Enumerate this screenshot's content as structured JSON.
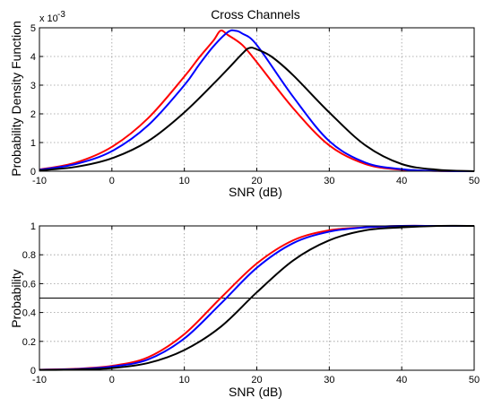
{
  "chart_data": [
    {
      "type": "line",
      "title": "Cross Channels",
      "xlabel": "SNR (dB)",
      "ylabel": "Probability Density Function",
      "y_multiplier_label": "x 10",
      "y_multiplier_exponent": "-3",
      "xlim": [
        -10,
        50
      ],
      "ylim": [
        0,
        5
      ],
      "x_ticks": [
        "-10",
        "0",
        "10",
        "20",
        "30",
        "40",
        "50"
      ],
      "y_ticks": [
        "0",
        "1",
        "2",
        "3",
        "4",
        "5"
      ],
      "grid": true,
      "series": [
        {
          "color": "#ff0000",
          "x": [
            -10,
            -5,
            0,
            5,
            10,
            12,
            14,
            15,
            16,
            18,
            20,
            25,
            30,
            35,
            40,
            45,
            50
          ],
          "y": [
            0.06,
            0.3,
            0.85,
            1.85,
            3.3,
            3.95,
            4.55,
            4.9,
            4.75,
            4.4,
            3.8,
            2.2,
            0.9,
            0.25,
            0.05,
            0.01,
            0
          ]
        },
        {
          "color": "#0000ff",
          "x": [
            -10,
            -5,
            0,
            5,
            10,
            12,
            14,
            16,
            17,
            18,
            20,
            25,
            30,
            35,
            40,
            45,
            50
          ],
          "y": [
            0.05,
            0.25,
            0.7,
            1.6,
            3.0,
            3.7,
            4.35,
            4.85,
            4.9,
            4.8,
            4.4,
            2.6,
            1.05,
            0.3,
            0.07,
            0.01,
            0
          ]
        },
        {
          "color": "#000000",
          "x": [
            -10,
            -5,
            0,
            5,
            10,
            15,
            18,
            19,
            20,
            22,
            25,
            30,
            35,
            40,
            45,
            50
          ],
          "y": [
            0.03,
            0.15,
            0.45,
            1.05,
            2.05,
            3.3,
            4.1,
            4.3,
            4.25,
            4.0,
            3.35,
            2.05,
            0.9,
            0.25,
            0.05,
            0
          ]
        }
      ]
    },
    {
      "type": "line",
      "title": "",
      "xlabel": "SNR (dB)",
      "ylabel": "Probability",
      "xlim": [
        -10,
        50
      ],
      "ylim": [
        0,
        1
      ],
      "x_ticks": [
        "-10",
        "0",
        "10",
        "20",
        "30",
        "40",
        "50"
      ],
      "y_ticks": [
        "0",
        "0.2",
        "0.4",
        "0.6",
        "0.8",
        "1"
      ],
      "grid": true,
      "reference_line_y": 0.5,
      "series": [
        {
          "color": "#ff0000",
          "x": [
            -10,
            -5,
            0,
            5,
            10,
            15,
            20,
            25,
            30,
            35,
            40,
            45,
            50
          ],
          "y": [
            0.004,
            0.01,
            0.03,
            0.09,
            0.25,
            0.5,
            0.74,
            0.9,
            0.97,
            0.99,
            1.0,
            1.0,
            1.0
          ]
        },
        {
          "color": "#0000ff",
          "x": [
            -10,
            -5,
            0,
            5,
            10,
            15,
            20,
            25,
            30,
            35,
            40,
            45,
            50
          ],
          "y": [
            0.003,
            0.008,
            0.025,
            0.075,
            0.22,
            0.46,
            0.71,
            0.88,
            0.96,
            0.99,
            1.0,
            1.0,
            1.0
          ]
        },
        {
          "color": "#000000",
          "x": [
            -10,
            -5,
            0,
            5,
            10,
            15,
            20,
            25,
            30,
            35,
            40,
            45,
            50
          ],
          "y": [
            0.002,
            0.005,
            0.015,
            0.05,
            0.14,
            0.3,
            0.54,
            0.76,
            0.9,
            0.97,
            0.99,
            1.0,
            1.0
          ]
        }
      ]
    }
  ]
}
